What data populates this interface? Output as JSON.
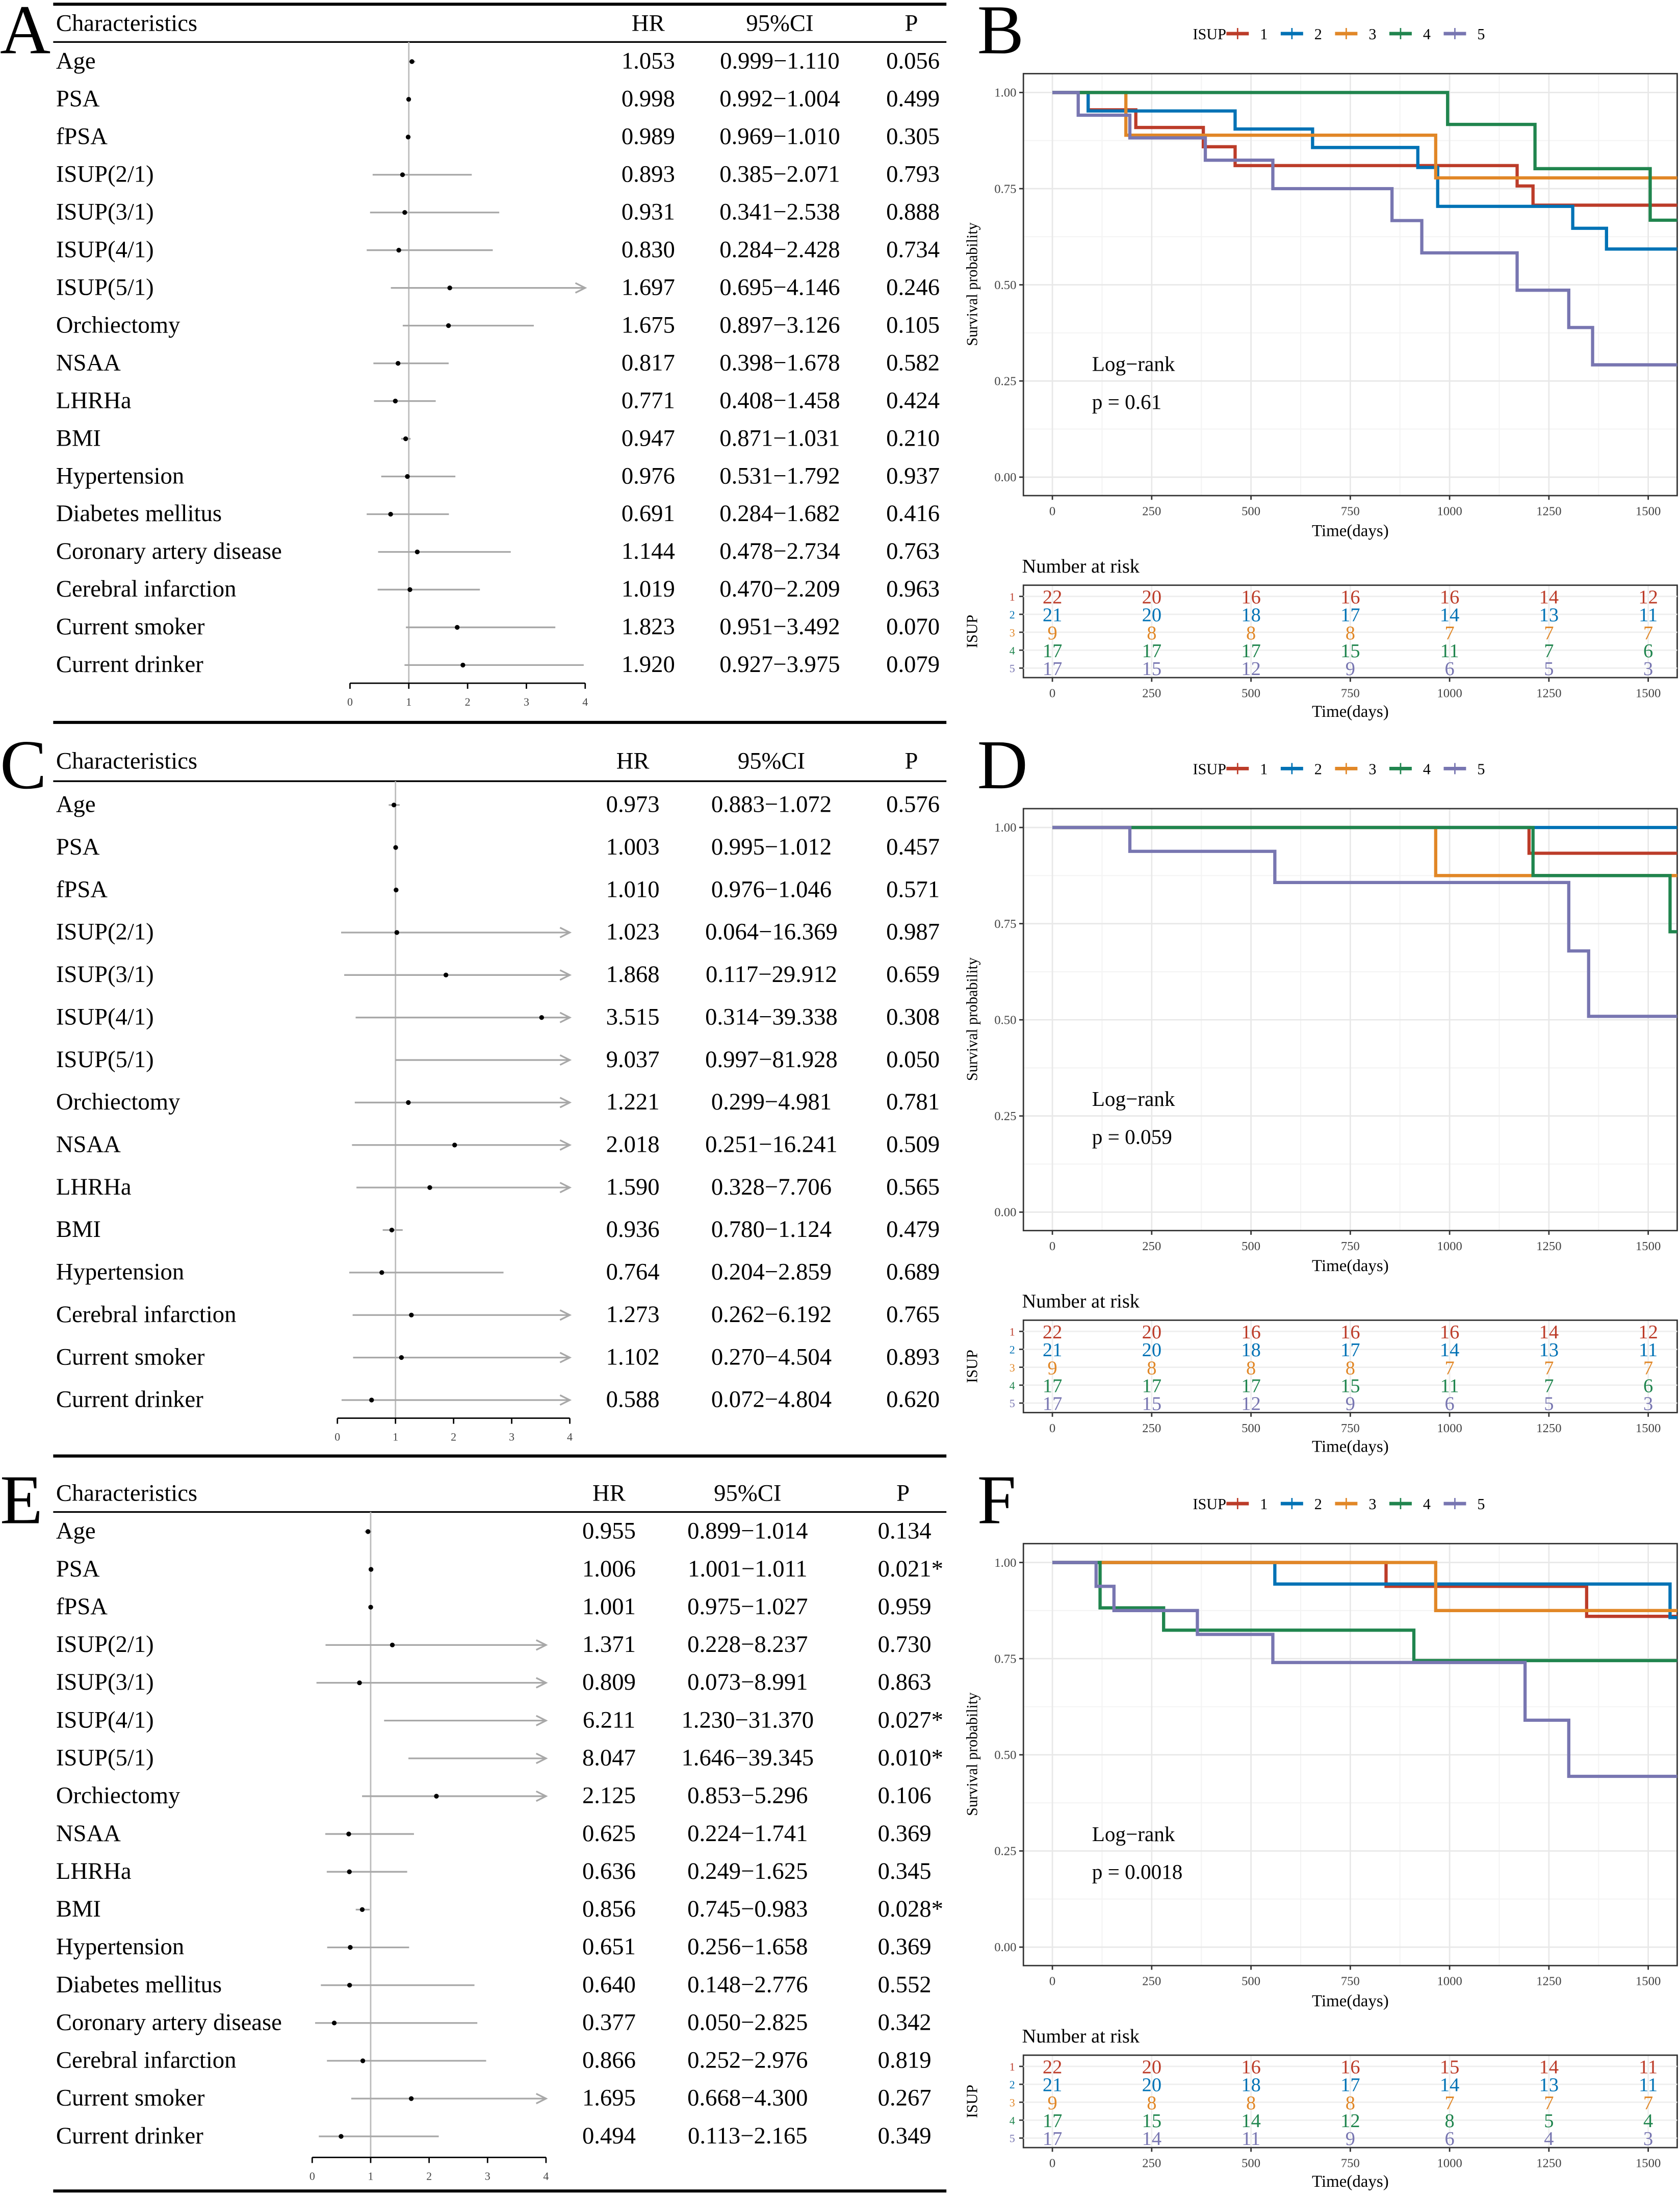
{
  "chart_data": [
    {
      "type": "forest",
      "panel": "A",
      "headers": {
        "name": "Characteristics",
        "hr": "HR",
        "ci": "95%CI",
        "p": "P"
      },
      "xlim": [
        0,
        4
      ],
      "xticks": [
        "0",
        "1",
        "2",
        "3",
        "4"
      ],
      "rows": [
        {
          "name": "Age",
          "hr": "1.053",
          "ci": "0.999−1.110",
          "p": "0.056"
        },
        {
          "name": "PSA",
          "hr": "0.998",
          "ci": "0.992−1.004",
          "p": "0.499"
        },
        {
          "name": "fPSA",
          "hr": "0.989",
          "ci": "0.969−1.010",
          "p": "0.305"
        },
        {
          "name": "ISUP(2/1)",
          "hr": "0.893",
          "ci": "0.385−2.071",
          "p": "0.793"
        },
        {
          "name": "ISUP(3/1)",
          "hr": "0.931",
          "ci": "0.341−2.538",
          "p": "0.888"
        },
        {
          "name": "ISUP(4/1)",
          "hr": "0.830",
          "ci": "0.284−2.428",
          "p": "0.734"
        },
        {
          "name": "ISUP(5/1)",
          "hr": "1.697",
          "ci": "0.695−4.146",
          "p": "0.246"
        },
        {
          "name": "Orchiectomy",
          "hr": "1.675",
          "ci": "0.897−3.126",
          "p": "0.105"
        },
        {
          "name": "NSAA",
          "hr": "0.817",
          "ci": "0.398−1.678",
          "p": "0.582"
        },
        {
          "name": "LHRHa",
          "hr": "0.771",
          "ci": "0.408−1.458",
          "p": "0.424"
        },
        {
          "name": "BMI",
          "hr": "0.947",
          "ci": "0.871−1.031",
          "p": "0.210"
        },
        {
          "name": "Hypertension",
          "hr": "0.976",
          "ci": "0.531−1.792",
          "p": "0.937"
        },
        {
          "name": "Diabetes mellitus",
          "hr": "0.691",
          "ci": "0.284−1.682",
          "p": "0.416"
        },
        {
          "name": "Coronary artery disease",
          "hr": "1.144",
          "ci": "0.478−2.734",
          "p": "0.763"
        },
        {
          "name": "Cerebral infarction",
          "hr": "1.019",
          "ci": "0.470−2.209",
          "p": "0.963"
        },
        {
          "name": "Current smoker",
          "hr": "1.823",
          "ci": "0.951−3.492",
          "p": "0.070"
        },
        {
          "name": "Current drinker",
          "hr": "1.920",
          "ci": "0.927−3.975",
          "p": "0.079"
        }
      ]
    },
    {
      "type": "line",
      "subtype": "kaplan-meier",
      "panel": "B",
      "legend_title": "ISUP",
      "xlabel": "Time(days)",
      "ylabel": "Survival probability",
      "xlim": [
        -73,
        1573
      ],
      "ylim": [
        -0.048,
        1.049
      ],
      "xticks": [
        "0",
        "250",
        "500",
        "750",
        "1000",
        "1250",
        "1500"
      ],
      "yticks": [
        "0.00",
        "0.25",
        "0.50",
        "0.75",
        "1.00"
      ],
      "annotation": {
        "test": "Log−rank",
        "p": "p = 0.61"
      },
      "groups": [
        {
          "name": "1",
          "color": "#BC3C29",
          "steps": [
            [
              0,
              1
            ],
            [
              90,
              0.955
            ],
            [
              210,
              0.909
            ],
            [
              380,
              0.859
            ],
            [
              460,
              0.81
            ],
            [
              1170,
              0.757
            ],
            [
              1210,
              0.707
            ]
          ]
        },
        {
          "name": "2",
          "color": "#0072B5",
          "steps": [
            [
              0,
              1
            ],
            [
              90,
              0.952
            ],
            [
              460,
              0.905
            ],
            [
              655,
              0.857
            ],
            [
              920,
              0.805
            ],
            [
              970,
              0.704
            ],
            [
              1310,
              0.647
            ],
            [
              1395,
              0.593
            ]
          ]
        },
        {
          "name": "3",
          "color": "#E18727",
          "steps": [
            [
              0,
              1
            ],
            [
              185,
              0.889
            ],
            [
              965,
              0.778
            ]
          ]
        },
        {
          "name": "4",
          "color": "#20854E",
          "steps": [
            [
              0,
              1
            ],
            [
              995,
              0.917
            ],
            [
              1215,
              0.802
            ],
            [
              1505,
              0.668
            ]
          ]
        },
        {
          "name": "5",
          "color": "#7876B1",
          "steps": [
            [
              0,
              1
            ],
            [
              65,
              0.941
            ],
            [
              195,
              0.882
            ],
            [
              385,
              0.824
            ],
            [
              555,
              0.75
            ],
            [
              855,
              0.667
            ],
            [
              930,
              0.583
            ],
            [
              1170,
              0.486
            ],
            [
              1300,
              0.389
            ],
            [
              1360,
              0.292
            ]
          ]
        }
      ],
      "risk_table": {
        "title": "Number at risk",
        "ylabel": "ISUP",
        "xlabel": "Time(days)",
        "rows": [
          [
            "22",
            "20",
            "16",
            "16",
            "16",
            "14",
            "12"
          ],
          [
            "21",
            "20",
            "18",
            "17",
            "14",
            "13",
            "11"
          ],
          [
            "9",
            "8",
            "8",
            "8",
            "7",
            "7",
            "7"
          ],
          [
            "17",
            "17",
            "17",
            "15",
            "11",
            "7",
            "6"
          ],
          [
            "17",
            "15",
            "12",
            "9",
            "6",
            "5",
            "3"
          ]
        ]
      }
    },
    {
      "type": "forest",
      "panel": "C",
      "headers": {
        "name": "Characteristics",
        "hr": "HR",
        "ci": "95%CI",
        "p": "P"
      },
      "xlim": [
        0,
        4
      ],
      "xticks": [
        "0",
        "1",
        "2",
        "3",
        "4"
      ],
      "rows": [
        {
          "name": "Age",
          "hr": "0.973",
          "ci": "0.883−1.072",
          "p": "0.576"
        },
        {
          "name": "PSA",
          "hr": "1.003",
          "ci": "0.995−1.012",
          "p": "0.457"
        },
        {
          "name": "fPSA",
          "hr": "1.010",
          "ci": "0.976−1.046",
          "p": "0.571"
        },
        {
          "name": "ISUP(2/1)",
          "hr": "1.023",
          "ci": "0.064−16.369",
          "p": "0.987"
        },
        {
          "name": "ISUP(3/1)",
          "hr": "1.868",
          "ci": "0.117−29.912",
          "p": "0.659"
        },
        {
          "name": "ISUP(4/1)",
          "hr": "3.515",
          "ci": "0.314−39.338",
          "p": "0.308"
        },
        {
          "name": "ISUP(5/1)",
          "hr": "9.037",
          "ci": "0.997−81.928",
          "p": "0.050"
        },
        {
          "name": "Orchiectomy",
          "hr": "1.221",
          "ci": "0.299−4.981",
          "p": "0.781"
        },
        {
          "name": "NSAA",
          "hr": "2.018",
          "ci": "0.251−16.241",
          "p": "0.509"
        },
        {
          "name": "LHRHa",
          "hr": "1.590",
          "ci": "0.328−7.706",
          "p": "0.565"
        },
        {
          "name": "BMI",
          "hr": "0.936",
          "ci": "0.780−1.124",
          "p": "0.479"
        },
        {
          "name": "Hypertension",
          "hr": "0.764",
          "ci": "0.204−2.859",
          "p": "0.689"
        },
        {
          "name": "Cerebral infarction",
          "hr": "1.273",
          "ci": "0.262−6.192",
          "p": "0.765"
        },
        {
          "name": "Current smoker",
          "hr": "1.102",
          "ci": "0.270−4.504",
          "p": "0.893"
        },
        {
          "name": "Current drinker",
          "hr": "0.588",
          "ci": "0.072−4.804",
          "p": "0.620"
        }
      ]
    },
    {
      "type": "line",
      "subtype": "kaplan-meier",
      "panel": "D",
      "legend_title": "ISUP",
      "xlabel": "Time(days)",
      "ylabel": "Survival probability",
      "xlim": [
        -73,
        1573
      ],
      "ylim": [
        -0.048,
        1.049
      ],
      "xticks": [
        "0",
        "250",
        "500",
        "750",
        "1000",
        "1250",
        "1500"
      ],
      "yticks": [
        "0.00",
        "0.25",
        "0.50",
        "0.75",
        "1.00"
      ],
      "annotation": {
        "test": "Log−rank",
        "p": "p = 0.059"
      },
      "groups": [
        {
          "name": "1",
          "color": "#BC3C29",
          "steps": [
            [
              0,
              1
            ],
            [
              1200,
              0.933
            ]
          ]
        },
        {
          "name": "2",
          "color": "#0072B5",
          "steps": [
            [
              0,
              1
            ]
          ]
        },
        {
          "name": "3",
          "color": "#E18727",
          "steps": [
            [
              0,
              1
            ],
            [
              965,
              0.875
            ]
          ]
        },
        {
          "name": "4",
          "color": "#20854E",
          "steps": [
            [
              0,
              1
            ],
            [
              1210,
              0.875
            ],
            [
              1555,
              0.729
            ]
          ]
        },
        {
          "name": "5",
          "color": "#7876B1",
          "steps": [
            [
              0,
              1
            ],
            [
              195,
              0.938
            ],
            [
              560,
              0.857
            ],
            [
              1300,
              0.679
            ],
            [
              1350,
              0.509
            ]
          ]
        }
      ],
      "risk_table": {
        "title": "Number at risk",
        "ylabel": "ISUP",
        "xlabel": "Time(days)",
        "rows": [
          [
            "22",
            "20",
            "16",
            "16",
            "16",
            "14",
            "12"
          ],
          [
            "21",
            "20",
            "18",
            "17",
            "14",
            "13",
            "11"
          ],
          [
            "9",
            "8",
            "8",
            "8",
            "7",
            "7",
            "7"
          ],
          [
            "17",
            "17",
            "17",
            "15",
            "11",
            "7",
            "6"
          ],
          [
            "17",
            "15",
            "12",
            "9",
            "6",
            "5",
            "3"
          ]
        ]
      }
    },
    {
      "type": "forest",
      "panel": "E",
      "headers": {
        "name": "Characteristics",
        "hr": "HR",
        "ci": "95%CI",
        "p": "P"
      },
      "xlim": [
        0,
        4
      ],
      "xticks": [
        "0",
        "1",
        "2",
        "3",
        "4"
      ],
      "rows": [
        {
          "name": "Age",
          "hr": "0.955",
          "ci": "0.899−1.014",
          "p": "0.134"
        },
        {
          "name": "PSA",
          "hr": "1.006",
          "ci": "1.001−1.011",
          "p": "0.021*"
        },
        {
          "name": "fPSA",
          "hr": "1.001",
          "ci": "0.975−1.027",
          "p": "0.959"
        },
        {
          "name": "ISUP(2/1)",
          "hr": "1.371",
          "ci": "0.228−8.237",
          "p": "0.730"
        },
        {
          "name": "ISUP(3/1)",
          "hr": "0.809",
          "ci": "0.073−8.991",
          "p": "0.863"
        },
        {
          "name": "ISUP(4/1)",
          "hr": "6.211",
          "ci": "1.230−31.370",
          "p": "0.027*"
        },
        {
          "name": "ISUP(5/1)",
          "hr": "8.047",
          "ci": "1.646−39.345",
          "p": "0.010*"
        },
        {
          "name": "Orchiectomy",
          "hr": "2.125",
          "ci": "0.853−5.296",
          "p": "0.106"
        },
        {
          "name": "NSAA",
          "hr": "0.625",
          "ci": "0.224−1.741",
          "p": "0.369"
        },
        {
          "name": "LHRHa",
          "hr": "0.636",
          "ci": "0.249−1.625",
          "p": "0.345"
        },
        {
          "name": "BMI",
          "hr": "0.856",
          "ci": "0.745−0.983",
          "p": "0.028*"
        },
        {
          "name": "Hypertension",
          "hr": "0.651",
          "ci": "0.256−1.658",
          "p": "0.369"
        },
        {
          "name": "Diabetes mellitus",
          "hr": "0.640",
          "ci": "0.148−2.776",
          "p": "0.552"
        },
        {
          "name": "Coronary artery disease",
          "hr": "0.377",
          "ci": "0.050−2.825",
          "p": "0.342"
        },
        {
          "name": "Cerebral infarction",
          "hr": "0.866",
          "ci": "0.252−2.976",
          "p": "0.819"
        },
        {
          "name": "Current smoker",
          "hr": "1.695",
          "ci": "0.668−4.300",
          "p": "0.267"
        },
        {
          "name": "Current drinker",
          "hr": "0.494",
          "ci": "0.113−2.165",
          "p": "0.349"
        }
      ]
    },
    {
      "type": "line",
      "subtype": "kaplan-meier",
      "panel": "F",
      "legend_title": "ISUP",
      "xlabel": "Time(days)",
      "ylabel": "Survival probability",
      "xlim": [
        -73,
        1573
      ],
      "ylim": [
        -0.048,
        1.049
      ],
      "xticks": [
        "0",
        "250",
        "500",
        "750",
        "1000",
        "1250",
        "1500"
      ],
      "yticks": [
        "0.00",
        "0.25",
        "0.50",
        "0.75",
        "1.00"
      ],
      "annotation": {
        "test": "Log−rank",
        "p": "p = 0.0018"
      },
      "groups": [
        {
          "name": "1",
          "color": "#BC3C29",
          "steps": [
            [
              0,
              1
            ],
            [
              840,
              0.938
            ],
            [
              1345,
              0.86
            ]
          ]
        },
        {
          "name": "2",
          "color": "#0072B5",
          "steps": [
            [
              0,
              1
            ],
            [
              560,
              0.944
            ],
            [
              1555,
              0.857
            ]
          ]
        },
        {
          "name": "3",
          "color": "#E18727",
          "steps": [
            [
              0,
              1
            ],
            [
              965,
              0.875
            ]
          ]
        },
        {
          "name": "4",
          "color": "#20854E",
          "steps": [
            [
              0,
              1
            ],
            [
              120,
              0.882
            ],
            [
              280,
              0.824
            ],
            [
              910,
              0.745
            ]
          ]
        },
        {
          "name": "5",
          "color": "#7876B1",
          "steps": [
            [
              0,
              1
            ],
            [
              110,
              0.938
            ],
            [
              155,
              0.875
            ],
            [
              365,
              0.813
            ],
            [
              555,
              0.74
            ],
            [
              1190,
              0.59
            ],
            [
              1300,
              0.444
            ]
          ]
        }
      ],
      "risk_table": {
        "title": "Number at risk",
        "ylabel": "ISUP",
        "xlabel": "Time(days)",
        "rows": [
          [
            "22",
            "20",
            "16",
            "16",
            "15",
            "14",
            "11"
          ],
          [
            "21",
            "20",
            "18",
            "17",
            "14",
            "13",
            "11"
          ],
          [
            "9",
            "8",
            "8",
            "8",
            "7",
            "7",
            "7"
          ],
          [
            "17",
            "15",
            "14",
            "12",
            "8",
            "5",
            "4"
          ],
          [
            "17",
            "14",
            "11",
            "9",
            "6",
            "4",
            "3"
          ]
        ]
      }
    }
  ]
}
